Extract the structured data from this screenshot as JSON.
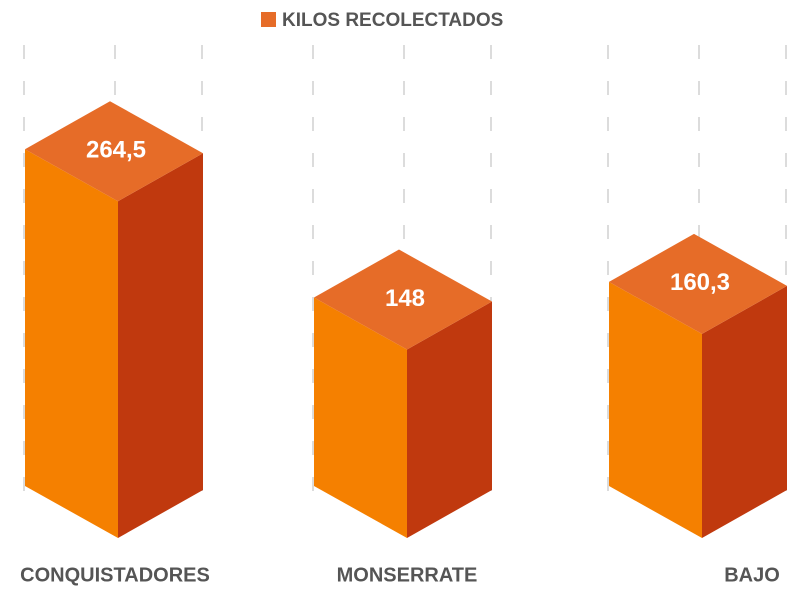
{
  "chart_data": {
    "type": "bar3d",
    "categories": [
      "CONQUISTADORES",
      "MONSERRATE",
      "BAJO"
    ],
    "series": [
      {
        "name": "KILOS RECOLECTADOS",
        "color": "#f58000",
        "values": [
          264.5,
          148,
          160.3
        ],
        "value_labels": [
          "264,5",
          "148",
          "160,3"
        ]
      }
    ],
    "ylim": [
      0,
      300
    ]
  }
}
